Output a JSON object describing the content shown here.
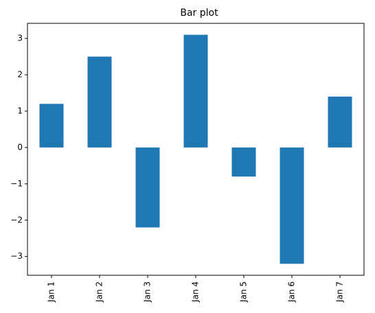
{
  "chart_data": {
    "type": "bar",
    "title": "Bar plot",
    "categories": [
      "Jan 1",
      "Jan 2",
      "Jan 3",
      "Jan 4",
      "Jan 5",
      "Jan 6",
      "Jan 7"
    ],
    "values": [
      1.2,
      2.5,
      -2.2,
      3.1,
      -0.8,
      -3.2,
      1.4
    ],
    "ylim": [
      -3.515,
      3.415
    ],
    "yticks": [
      -3,
      -2,
      -1,
      0,
      1,
      2,
      3
    ],
    "ytick_labels": [
      "−3",
      "−2",
      "−1",
      "0",
      "1",
      "2",
      "3"
    ],
    "xlabel": "",
    "ylabel": "",
    "grid": false,
    "legend": "none",
    "colors": {
      "bar": "#1f77b4",
      "axis": "#000000",
      "background": "#ffffff"
    }
  }
}
